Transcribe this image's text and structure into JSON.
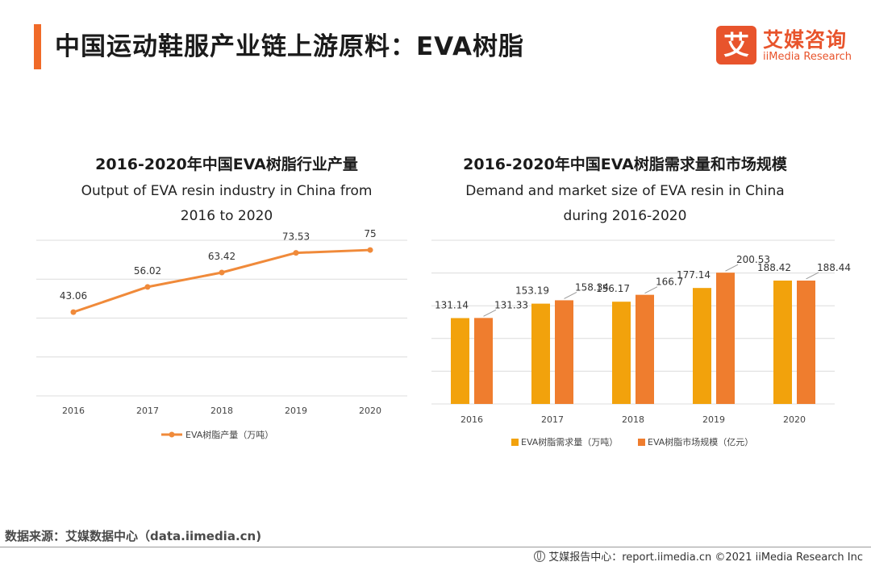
{
  "header": {
    "title": "中国运动鞋服产业链上游原料：EVA树脂",
    "logo_mark": "艾",
    "logo_cn": "艾媒咨询",
    "logo_en": "iiMedia Research",
    "accent_color": "#f06a28"
  },
  "footer": {
    "source": "数据来源：艾媒数据中心（data.iimedia.cn)",
    "copyright": "艾媒报告中心：report.iimedia.cn  ©2021  iiMedia Research  Inc",
    "icon": "globe-icon"
  },
  "chart_data": [
    {
      "type": "line",
      "title": "2016-2020年中国EVA树脂行业产量",
      "subtitle_line1": "Output of EVA resin industry in China from",
      "subtitle_line2": "2016 to 2020",
      "categories": [
        "2016",
        "2017",
        "2018",
        "2019",
        "2020"
      ],
      "series": [
        {
          "name": "EVA树脂产量（万吨）",
          "values": [
            43.06,
            56.02,
            63.42,
            73.53,
            75
          ],
          "labels": [
            "43.06",
            "56.02",
            "63.42",
            "73.53",
            "75"
          ],
          "color": "#f08a3a"
        }
      ],
      "ylim": [
        0,
        80
      ],
      "grid": true,
      "legend": "bottom-center"
    },
    {
      "type": "bar",
      "title": "2016-2020年中国EVA树脂需求量和市场规模",
      "subtitle_line1": "Demand and market size of EVA resin in China",
      "subtitle_line2": "during 2016-2020",
      "categories": [
        "2016",
        "2017",
        "2018",
        "2019",
        "2020"
      ],
      "series": [
        {
          "name": "EVA树脂需求量（万吨）",
          "values": [
            131.14,
            153.19,
            156.17,
            177.14,
            188.42
          ],
          "labels": [
            "131.14",
            "153.19",
            "156.17",
            "177.14",
            "188.42"
          ],
          "color": "#f2a20c"
        },
        {
          "name": "EVA树脂市场规模（亿元）",
          "values": [
            131.33,
            158.34,
            166.7,
            200.53,
            188.44
          ],
          "labels": [
            "131.33",
            "158.34",
            "166.7",
            "200.53",
            "188.44"
          ],
          "color": "#ef7d2e"
        }
      ],
      "ylim": [
        0,
        250
      ],
      "grid": true,
      "legend": "bottom-center"
    }
  ]
}
